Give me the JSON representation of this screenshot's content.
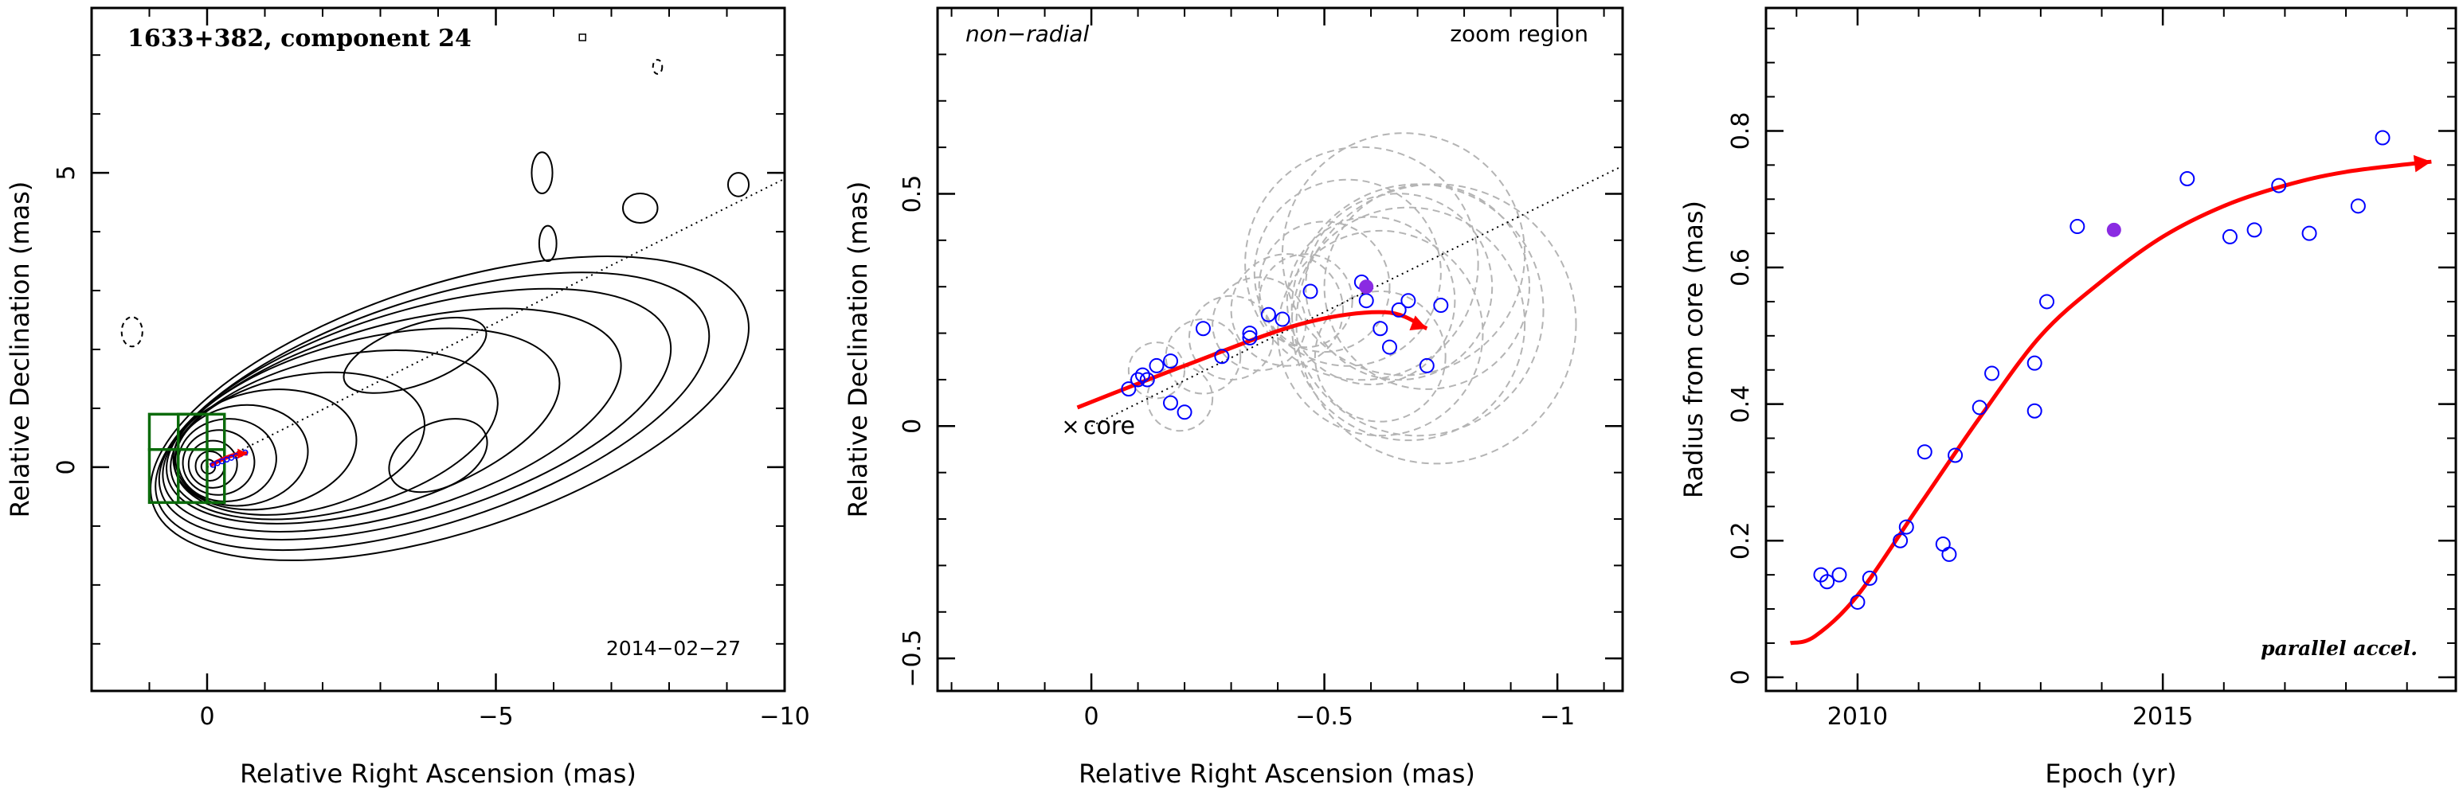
{
  "chart_data": [
    {
      "type": "contour",
      "title": "1633+382, component 24",
      "date_label": "2014−02−27",
      "xlabel": "Relative Right Ascension (mas)",
      "ylabel": "Relative Declination (mas)",
      "xlim": [
        2,
        -10
      ],
      "ylim": [
        -3.8,
        7.8
      ],
      "x_ticks": [
        {
          "v": 0,
          "label": "0"
        },
        {
          "v": -5,
          "label": "−5"
        },
        {
          "v": -10,
          "label": "−10"
        }
      ],
      "y_ticks": [
        {
          "v": 0,
          "label": "0"
        },
        {
          "v": 5,
          "label": "5"
        }
      ],
      "zoom_boxes": [
        [
          0,
          1,
          -0.6,
          0.3
        ],
        [
          0,
          1,
          0.3,
          0.9
        ],
        [
          -0.3,
          0.5,
          -0.6,
          0.3
        ],
        [
          -0.3,
          0.5,
          0.3,
          0.9
        ]
      ],
      "dotted_line": [
        [
          0,
          0
        ],
        [
          -10,
          4.9
        ]
      ],
      "trajectory": [
        [
          -0.05,
          0.03
        ],
        [
          -0.3,
          0.15
        ],
        [
          -0.55,
          0.23
        ],
        [
          -0.7,
          0.23
        ]
      ]
    },
    {
      "type": "scatter",
      "annotation_left": "non−radial",
      "annotation_right": "zoom region",
      "core_label": "core",
      "xlabel": "Relative Right Ascension (mas)",
      "ylabel": "Relative Declination (mas)",
      "xlim": [
        0.33,
        -1.14
      ],
      "ylim": [
        -0.57,
        0.9
      ],
      "x_ticks": [
        {
          "v": 0,
          "label": "0"
        },
        {
          "v": -0.5,
          "label": "−0.5"
        },
        {
          "v": -1,
          "label": "−1"
        }
      ],
      "y_ticks": [
        {
          "v": -0.5,
          "label": "−0.5"
        },
        {
          "v": 0,
          "label": "0"
        },
        {
          "v": 0.5,
          "label": "0.5"
        }
      ],
      "points": [
        [
          -0.08,
          0.08
        ],
        [
          -0.1,
          0.1
        ],
        [
          -0.11,
          0.11
        ],
        [
          -0.12,
          0.1
        ],
        [
          -0.14,
          0.13
        ],
        [
          -0.17,
          0.14
        ],
        [
          -0.17,
          0.05
        ],
        [
          -0.2,
          0.03
        ],
        [
          -0.24,
          0.21
        ],
        [
          -0.28,
          0.15
        ],
        [
          -0.34,
          0.19
        ],
        [
          -0.34,
          0.2
        ],
        [
          -0.38,
          0.24
        ],
        [
          -0.41,
          0.23
        ],
        [
          -0.47,
          0.29
        ],
        [
          -0.58,
          0.31
        ],
        [
          -0.59,
          0.27
        ],
        [
          -0.62,
          0.21
        ],
        [
          -0.64,
          0.17
        ],
        [
          -0.66,
          0.25
        ],
        [
          -0.68,
          0.27
        ],
        [
          -0.72,
          0.13
        ],
        [
          -0.75,
          0.26
        ]
      ],
      "highlight": [
        -0.59,
        0.3
      ],
      "error_circles": [
        [
          -0.14,
          0.12,
          0.06
        ],
        [
          -0.19,
          0.06,
          0.07
        ],
        [
          -0.24,
          0.15,
          0.08
        ],
        [
          -0.3,
          0.19,
          0.09
        ],
        [
          -0.36,
          0.22,
          0.1
        ],
        [
          -0.42,
          0.25,
          0.12
        ],
        [
          -0.46,
          0.27,
          0.1
        ],
        [
          -0.5,
          0.3,
          0.14
        ],
        [
          -0.55,
          0.33,
          0.2
        ],
        [
          -0.6,
          0.27,
          0.18
        ],
        [
          -0.62,
          0.2,
          0.22
        ],
        [
          -0.66,
          0.3,
          0.2
        ],
        [
          -0.68,
          0.22,
          0.25
        ],
        [
          -0.7,
          0.25,
          0.27
        ],
        [
          -0.72,
          0.3,
          0.22
        ],
        [
          -0.74,
          0.22,
          0.3
        ],
        [
          -0.58,
          0.35,
          0.25
        ],
        [
          -0.67,
          0.37,
          0.26
        ],
        [
          -0.62,
          0.15,
          0.14
        ]
      ],
      "dotted_line": [
        [
          0,
          0
        ],
        [
          -1.14,
          0.56
        ]
      ],
      "trajectory": [
        [
          0.03,
          0.04
        ],
        [
          -0.2,
          0.13
        ],
        [
          -0.45,
          0.22
        ],
        [
          -0.63,
          0.245
        ],
        [
          -0.72,
          0.21
        ]
      ]
    },
    {
      "type": "scatter",
      "annotation": "parallel accel.",
      "xlabel": "Epoch (yr)",
      "ylabel": "Radius from core (mas)",
      "xlim": [
        2008.5,
        2019.8
      ],
      "ylim": [
        -0.02,
        0.98
      ],
      "x_ticks": [
        {
          "v": 2010,
          "label": "2010"
        },
        {
          "v": 2015,
          "label": "2015"
        }
      ],
      "y_ticks": [
        {
          "v": 0,
          "label": "0"
        },
        {
          "v": 0.2,
          "label": "0.2"
        },
        {
          "v": 0.4,
          "label": "0.4"
        },
        {
          "v": 0.6,
          "label": "0.6"
        },
        {
          "v": 0.8,
          "label": "0.8"
        }
      ],
      "points": [
        [
          2009.4,
          0.15
        ],
        [
          2009.5,
          0.14
        ],
        [
          2009.7,
          0.15
        ],
        [
          2010.0,
          0.11
        ],
        [
          2010.2,
          0.145
        ],
        [
          2010.7,
          0.2
        ],
        [
          2010.8,
          0.22
        ],
        [
          2011.1,
          0.33
        ],
        [
          2011.4,
          0.195
        ],
        [
          2011.5,
          0.18
        ],
        [
          2011.6,
          0.325
        ],
        [
          2012.0,
          0.395
        ],
        [
          2012.2,
          0.445
        ],
        [
          2012.9,
          0.39
        ],
        [
          2012.9,
          0.46
        ],
        [
          2013.1,
          0.55
        ],
        [
          2013.6,
          0.66
        ],
        [
          2015.4,
          0.73
        ],
        [
          2016.1,
          0.645
        ],
        [
          2016.5,
          0.655
        ],
        [
          2016.9,
          0.72
        ],
        [
          2017.4,
          0.65
        ],
        [
          2018.2,
          0.69
        ],
        [
          2018.6,
          0.79
        ]
      ],
      "highlight": [
        2014.2,
        0.655
      ],
      "trajectory": [
        [
          2008.9,
          0.05
        ],
        [
          2009.3,
          0.06
        ],
        [
          2010.0,
          0.12
        ],
        [
          2011.0,
          0.25
        ],
        [
          2012.0,
          0.38
        ],
        [
          2013.0,
          0.5
        ],
        [
          2014.0,
          0.58
        ],
        [
          2015.0,
          0.645
        ],
        [
          2016.0,
          0.69
        ],
        [
          2017.0,
          0.72
        ],
        [
          2018.0,
          0.74
        ],
        [
          2019.4,
          0.755
        ]
      ]
    }
  ],
  "colors": {
    "axis": "#000000",
    "contour": "#000000",
    "zoom_box": "#0b6b0b",
    "trajectory": "#ff0000",
    "points": "#0000ff",
    "highlight": "#8a2be2",
    "error_circle": "#b4b4b4"
  }
}
